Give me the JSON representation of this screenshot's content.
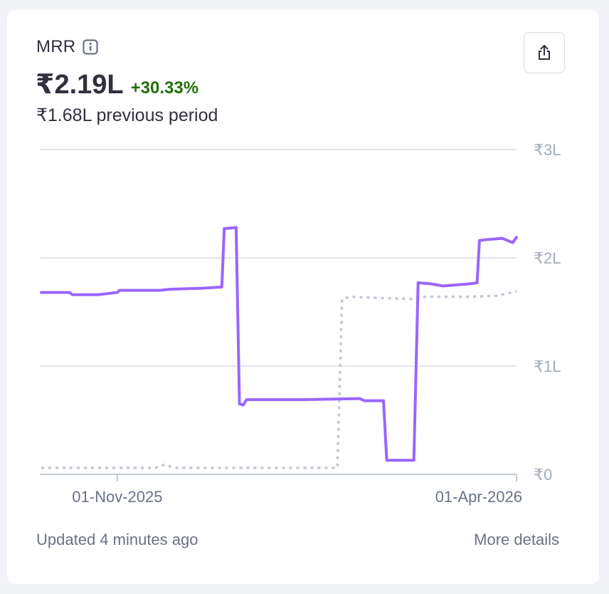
{
  "card": {
    "title": "MRR",
    "value": "₹2.19L",
    "change": "+30.33%",
    "previous": "₹1.68L previous period",
    "updated": "Updated 4 minutes ago",
    "details_link": "More details",
    "icons": {
      "info": "info-icon",
      "export": "share-export-icon"
    }
  },
  "colors": {
    "current": "#9966ff",
    "previous": "#c0c8d2",
    "gridline": "#d7dde5",
    "axis_text": "#a3acb9",
    "positive": "#217005"
  },
  "chart_data": {
    "type": "line",
    "xlabel": "",
    "ylabel": "",
    "x_range": [
      0,
      100
    ],
    "ylim": [
      0,
      3
    ],
    "y_unit": "₹ lakh",
    "y_ticks": [
      {
        "value": 0,
        "label": "₹0"
      },
      {
        "value": 1,
        "label": "₹1L"
      },
      {
        "value": 2,
        "label": "₹2L"
      },
      {
        "value": 3,
        "label": "₹3L"
      }
    ],
    "x_ticks": [
      {
        "x": 16,
        "label": "01-Nov-2025"
      },
      {
        "x": 100,
        "label": "01-Apr-2026"
      }
    ],
    "grid": true,
    "series": [
      {
        "role": "current",
        "style": "solid",
        "points": [
          [
            0,
            1.68
          ],
          [
            6,
            1.68
          ],
          [
            6.5,
            1.66
          ],
          [
            12,
            1.66
          ],
          [
            16,
            1.68
          ],
          [
            16.5,
            1.7
          ],
          [
            25,
            1.7
          ],
          [
            27,
            1.71
          ],
          [
            34,
            1.72
          ],
          [
            38,
            1.73
          ],
          [
            38.5,
            2.27
          ],
          [
            41,
            2.28
          ],
          [
            41.7,
            0.65
          ],
          [
            42.5,
            0.64
          ],
          [
            43.2,
            0.69
          ],
          [
            55,
            0.69
          ],
          [
            67,
            0.7
          ],
          [
            68,
            0.68
          ],
          [
            72,
            0.68
          ],
          [
            72.7,
            0.13
          ],
          [
            78.4,
            0.13
          ],
          [
            79.3,
            1.77
          ],
          [
            82,
            1.76
          ],
          [
            84.5,
            1.74
          ],
          [
            90.2,
            1.76
          ],
          [
            91.7,
            1.77
          ],
          [
            92.2,
            2.16
          ],
          [
            94,
            2.17
          ],
          [
            97,
            2.18
          ],
          [
            99.2,
            2.14
          ],
          [
            100,
            2.19
          ]
        ]
      },
      {
        "role": "previous",
        "style": "dotted",
        "points": [
          [
            0,
            0.06
          ],
          [
            24,
            0.06
          ],
          [
            26,
            0.09
          ],
          [
            28,
            0.06
          ],
          [
            62.3,
            0.06
          ],
          [
            63.3,
            1.62
          ],
          [
            65,
            1.64
          ],
          [
            71,
            1.63
          ],
          [
            78,
            1.62
          ],
          [
            80,
            1.64
          ],
          [
            90,
            1.64
          ],
          [
            96,
            1.65
          ],
          [
            100,
            1.69
          ]
        ]
      }
    ]
  }
}
